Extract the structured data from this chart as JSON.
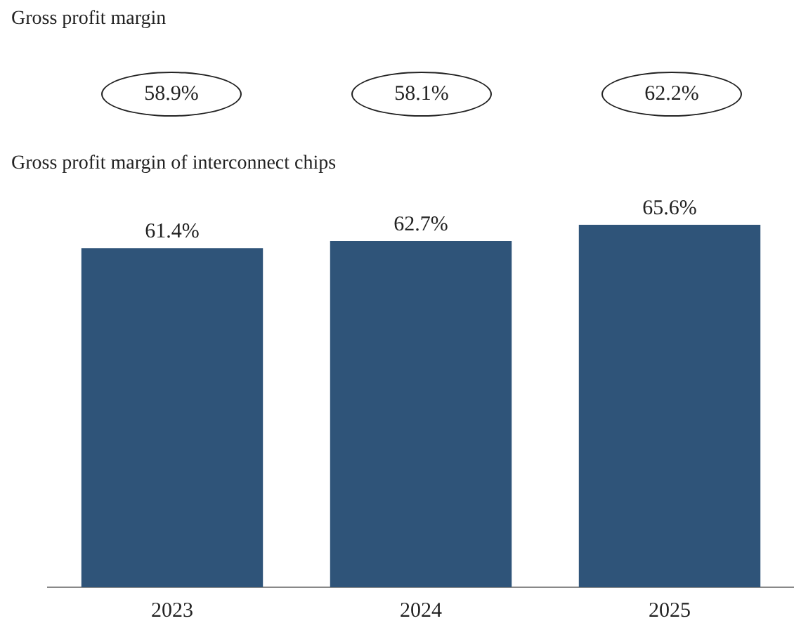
{
  "chart_data": [
    {
      "type": "other",
      "title": "Gross profit margin",
      "annotations": [
        "58.9%",
        "58.1%",
        "62.2%"
      ]
    },
    {
      "type": "bar",
      "title": "Gross profit margin of interconnect chips",
      "categories": [
        "2023",
        "2024",
        "2025"
      ],
      "values": [
        61.4,
        62.7,
        65.6
      ],
      "color": "#2f5479",
      "data_labels": true,
      "value_labels": [
        "61.4%",
        "62.7%",
        "65.6%"
      ],
      "grid": false,
      "legend": false
    }
  ]
}
